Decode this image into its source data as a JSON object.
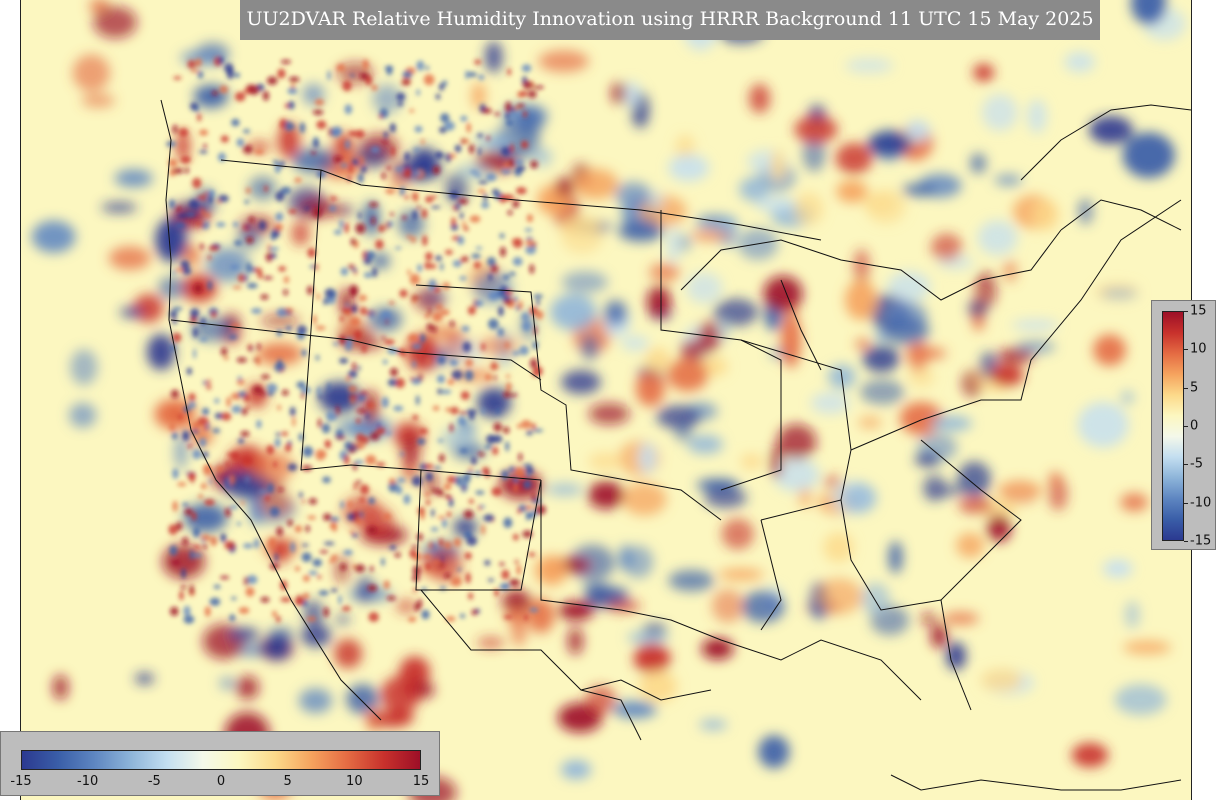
{
  "title": "UU2DVAR Relative Humidity Innovation using HRRR Background 11 UTC 15 May 2025",
  "colorbar": {
    "vertical_ticks": [
      "15",
      "10",
      "5",
      "0",
      "-5",
      "-10",
      "-15"
    ],
    "horizontal_ticks": [
      "-15",
      "-10",
      "-5",
      "0",
      "5",
      "10",
      "15"
    ],
    "range": [
      -15,
      15
    ],
    "colors": [
      "#2b3990",
      "#3a5ea8",
      "#5e86c1",
      "#8db4d9",
      "#c3def0",
      "#f4f8ea",
      "#fcf7c0",
      "#fcd98a",
      "#f5a35e",
      "#e46b43",
      "#c8312c",
      "#9d0f27"
    ]
  },
  "map": {
    "background_color": "#fcf7c0",
    "positive_color": "#c8312c",
    "negative_color": "#3a5ea8",
    "boundary_color": "#111111"
  }
}
